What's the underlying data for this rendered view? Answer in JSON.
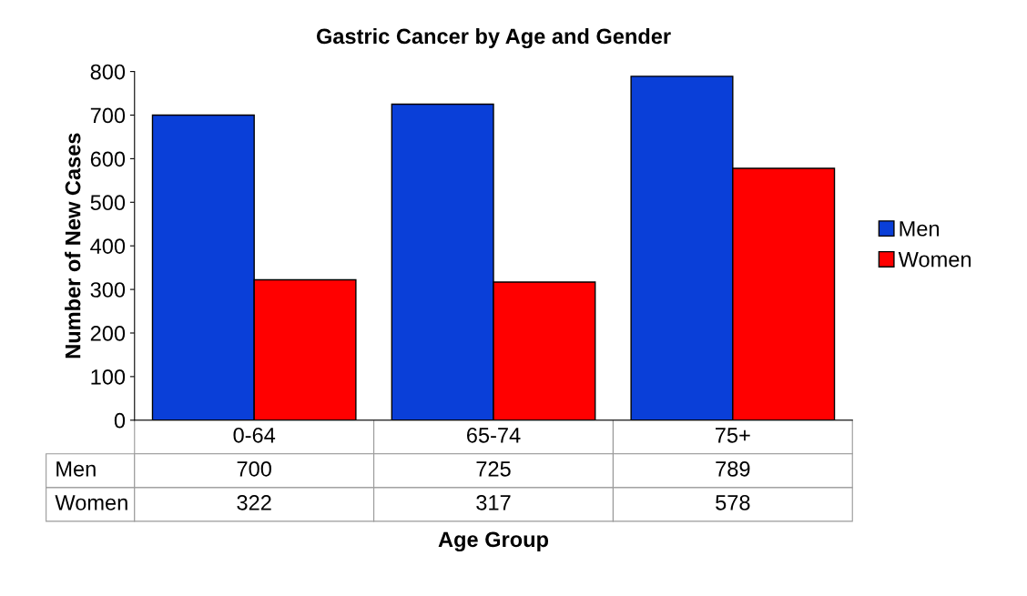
{
  "chart_data": {
    "type": "bar",
    "title": "Gastric Cancer by Age and Gender",
    "xlabel": "Age Group",
    "ylabel": "Number of New Cases",
    "categories": [
      "0-64",
      "65-74",
      "75+"
    ],
    "series": [
      {
        "name": "Men",
        "color": "#0a3fd8",
        "values": [
          700,
          725,
          789
        ]
      },
      {
        "name": "Women",
        "color": "#ff0000",
        "values": [
          322,
          317,
          578
        ]
      }
    ],
    "ylim": [
      0,
      800
    ],
    "yticks": [
      0,
      100,
      200,
      300,
      400,
      500,
      600,
      700,
      800
    ],
    "data_labels": true,
    "legend": "right",
    "grid": false
  }
}
